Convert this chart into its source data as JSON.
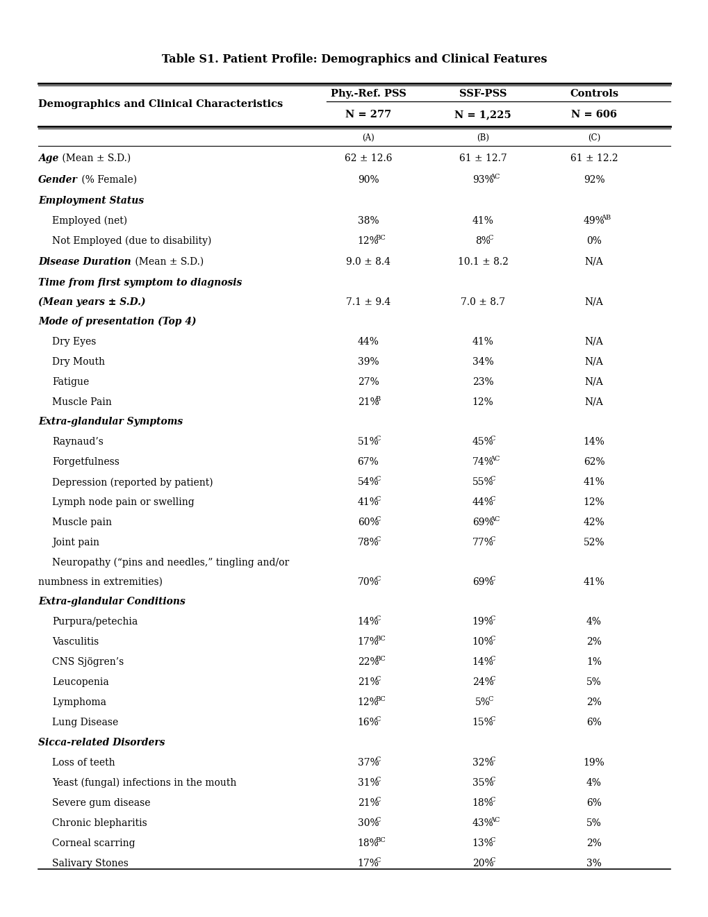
{
  "title": "Table S1. Patient Profile: Demographics and Clinical Features",
  "rows": [
    {
      "label": "Age",
      "label_rest": " (Mean ± S.D.)",
      "style": "bi_partial",
      "indent": 0,
      "vals": [
        "62 ± 12.6",
        "61 ± 12.7",
        "61 ± 12.2"
      ],
      "sups": [
        "",
        "",
        ""
      ]
    },
    {
      "label": "Gender",
      "label_rest": " (% Female)",
      "style": "bi_partial",
      "indent": 0,
      "vals": [
        "90%",
        "93%",
        "92%"
      ],
      "sups": [
        "",
        "AC",
        ""
      ]
    },
    {
      "label": "Employment Status",
      "label_rest": "",
      "style": "bi_header",
      "indent": 0,
      "vals": [
        "",
        "",
        ""
      ],
      "sups": [
        "",
        "",
        ""
      ]
    },
    {
      "label": "Employed (net)",
      "label_rest": "",
      "style": "normal",
      "indent": 1,
      "vals": [
        "38%",
        "41%",
        "49%"
      ],
      "sups": [
        "",
        "",
        "AB"
      ]
    },
    {
      "label": "Not Employed (due to disability)",
      "label_rest": "",
      "style": "normal",
      "indent": 1,
      "vals": [
        "12%",
        "8%",
        "0%"
      ],
      "sups": [
        "BC",
        "C",
        ""
      ]
    },
    {
      "label": "Disease Duration",
      "label_rest": " (Mean ± S.D.)",
      "style": "bi_partial",
      "indent": 0,
      "vals": [
        "9.0 ± 8.4",
        "10.1 ± 8.2",
        "N/A"
      ],
      "sups": [
        "",
        "",
        ""
      ]
    },
    {
      "label": "Time from first symptom to diagnosis",
      "label_rest": "",
      "style": "bi_header",
      "indent": 0,
      "vals": [
        "",
        "",
        ""
      ],
      "sups": [
        "",
        "",
        ""
      ],
      "multiline_next": true
    },
    {
      "label": "(Mean years ± S.D.)",
      "label_rest": "",
      "style": "bi_header_cont",
      "indent": 0,
      "vals": [
        "7.1 ± 9.4",
        "7.0 ± 8.7",
        "N/A"
      ],
      "sups": [
        "",
        "",
        ""
      ]
    },
    {
      "label": "Mode of presentation (Top 4)",
      "label_rest": "",
      "style": "bi_header",
      "indent": 0,
      "vals": [
        "",
        "",
        ""
      ],
      "sups": [
        "",
        "",
        ""
      ]
    },
    {
      "label": "Dry Eyes",
      "label_rest": "",
      "style": "normal",
      "indent": 1,
      "vals": [
        "44%",
        "41%",
        "N/A"
      ],
      "sups": [
        "",
        "",
        ""
      ]
    },
    {
      "label": "Dry Mouth",
      "label_rest": "",
      "style": "normal",
      "indent": 1,
      "vals": [
        "39%",
        "34%",
        "N/A"
      ],
      "sups": [
        "",
        "",
        ""
      ]
    },
    {
      "label": "Fatigue",
      "label_rest": "",
      "style": "normal",
      "indent": 1,
      "vals": [
        "27%",
        "23%",
        "N/A"
      ],
      "sups": [
        "",
        "",
        ""
      ]
    },
    {
      "label": "Muscle Pain",
      "label_rest": "",
      "style": "normal",
      "indent": 1,
      "vals": [
        "21%",
        "12%",
        "N/A"
      ],
      "sups": [
        "B",
        "",
        ""
      ]
    },
    {
      "label": "Extra-glandular Symptoms",
      "label_rest": "",
      "style": "bi_header",
      "indent": 0,
      "vals": [
        "",
        "",
        ""
      ],
      "sups": [
        "",
        "",
        ""
      ]
    },
    {
      "label": "Raynaud’s",
      "label_rest": "",
      "style": "normal",
      "indent": 1,
      "vals": [
        "51%",
        "45%",
        "14%"
      ],
      "sups": [
        "C",
        "C",
        ""
      ]
    },
    {
      "label": "Forgetfulness",
      "label_rest": "",
      "style": "normal",
      "indent": 1,
      "vals": [
        "67%",
        "74%",
        "62%"
      ],
      "sups": [
        "",
        "AC",
        ""
      ]
    },
    {
      "label": "Depression (reported by patient)",
      "label_rest": "",
      "style": "normal",
      "indent": 1,
      "vals": [
        "54%",
        "55%",
        "41%"
      ],
      "sups": [
        "C",
        "C",
        ""
      ]
    },
    {
      "label": "Lymph node pain or swelling",
      "label_rest": "",
      "style": "normal",
      "indent": 1,
      "vals": [
        "41%",
        "44%",
        "12%"
      ],
      "sups": [
        "C",
        "C",
        ""
      ]
    },
    {
      "label": "Muscle pain",
      "label_rest": "",
      "style": "normal",
      "indent": 1,
      "vals": [
        "60%",
        "69%",
        "42%"
      ],
      "sups": [
        "C",
        "AC",
        ""
      ]
    },
    {
      "label": "Joint pain",
      "label_rest": "",
      "style": "normal",
      "indent": 1,
      "vals": [
        "78%",
        "77%",
        "52%"
      ],
      "sups": [
        "C",
        "C",
        ""
      ]
    },
    {
      "label": "Neuropathy (“pins and needles,” tingling and/or",
      "label_rest": "",
      "style": "normal",
      "indent": 1,
      "vals": [
        "",
        "",
        ""
      ],
      "sups": [
        "",
        "",
        ""
      ],
      "multiline_next": true
    },
    {
      "label": "numbness in extremities)",
      "label_rest": "",
      "style": "normal_cont",
      "indent": 0,
      "vals": [
        "70%",
        "69%",
        "41%"
      ],
      "sups": [
        "C",
        "C",
        ""
      ]
    },
    {
      "label": "Extra-glandular Conditions",
      "label_rest": "",
      "style": "bi_header",
      "indent": 0,
      "vals": [
        "",
        "",
        ""
      ],
      "sups": [
        "",
        "",
        ""
      ]
    },
    {
      "label": "Purpura/petechia",
      "label_rest": "",
      "style": "normal",
      "indent": 1,
      "vals": [
        "14%",
        "19%",
        "4%"
      ],
      "sups": [
        "C",
        "C",
        ""
      ]
    },
    {
      "label": "Vasculitis",
      "label_rest": "",
      "style": "normal",
      "indent": 1,
      "vals": [
        "17%",
        "10%",
        "2%"
      ],
      "sups": [
        "BC",
        "C",
        ""
      ]
    },
    {
      "label": "CNS Sjögren’s",
      "label_rest": "",
      "style": "normal",
      "indent": 1,
      "vals": [
        "22%",
        "14%",
        "1%"
      ],
      "sups": [
        "BC",
        "C",
        ""
      ]
    },
    {
      "label": "Leucopenia",
      "label_rest": "",
      "style": "normal",
      "indent": 1,
      "vals": [
        "21%",
        "24%",
        "5%"
      ],
      "sups": [
        "C",
        "C",
        ""
      ]
    },
    {
      "label": "Lymphoma",
      "label_rest": "",
      "style": "normal",
      "indent": 1,
      "vals": [
        "12%",
        "5%",
        "2%"
      ],
      "sups": [
        "BC",
        "C",
        ""
      ]
    },
    {
      "label": "Lung Disease",
      "label_rest": "",
      "style": "normal",
      "indent": 1,
      "vals": [
        "16%",
        "15%",
        "6%"
      ],
      "sups": [
        "C",
        "C",
        ""
      ]
    },
    {
      "label": "Sicca-related Disorders",
      "label_rest": "",
      "style": "bi_header",
      "indent": 0,
      "vals": [
        "",
        "",
        ""
      ],
      "sups": [
        "",
        "",
        ""
      ]
    },
    {
      "label": "Loss of teeth",
      "label_rest": "",
      "style": "normal",
      "indent": 1,
      "vals": [
        "37%",
        "32%",
        "19%"
      ],
      "sups": [
        "C",
        "C",
        ""
      ]
    },
    {
      "label": "Yeast (fungal) infections in the mouth",
      "label_rest": "",
      "style": "normal",
      "indent": 1,
      "vals": [
        "31%",
        "35%",
        "4%"
      ],
      "sups": [
        "C",
        "C",
        ""
      ]
    },
    {
      "label": "Severe gum disease",
      "label_rest": "",
      "style": "normal",
      "indent": 1,
      "vals": [
        "21%",
        "18%",
        "6%"
      ],
      "sups": [
        "C",
        "C",
        ""
      ]
    },
    {
      "label": "Chronic blepharitis",
      "label_rest": "",
      "style": "normal",
      "indent": 1,
      "vals": [
        "30%",
        "43%",
        "5%"
      ],
      "sups": [
        "C",
        "AC",
        ""
      ]
    },
    {
      "label": "Corneal scarring",
      "label_rest": "",
      "style": "normal",
      "indent": 1,
      "vals": [
        "18%",
        "13%",
        "2%"
      ],
      "sups": [
        "BC",
        "C",
        ""
      ]
    },
    {
      "label": "Salivary Stones",
      "label_rest": "",
      "style": "normal",
      "indent": 1,
      "vals": [
        "17%",
        "20%",
        "3%"
      ],
      "sups": [
        "C",
        "C",
        ""
      ]
    }
  ],
  "bg_color": "#ffffff",
  "fs": 10.0,
  "fs_title": 11.5,
  "fs_header": 10.5,
  "fs_sub": 8.5,
  "fs_sup": 7.0
}
